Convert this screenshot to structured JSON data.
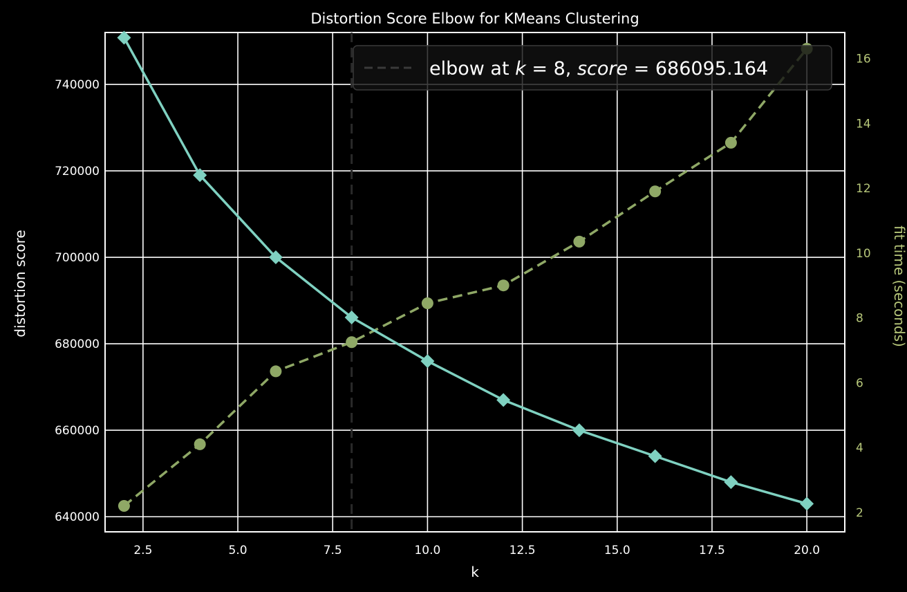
{
  "chart_data": {
    "type": "line",
    "title": "Distortion Score Elbow for KMeans Clustering",
    "xlabel": "k",
    "ylabel": "distortion score",
    "ylabel_right": "fit time (seconds)",
    "xlim": [
      1.5,
      21.0
    ],
    "ylim": [
      636500,
      752000
    ],
    "ylim_right": [
      1.4,
      16.8
    ],
    "x_ticks": [
      2.5,
      5.0,
      7.5,
      10.0,
      12.5,
      15.0,
      17.5,
      20.0
    ],
    "x_tick_labels": [
      "2.5",
      "5.0",
      "7.5",
      "10.0",
      "12.5",
      "15.0",
      "17.5",
      "20.0"
    ],
    "y_ticks": [
      640000,
      660000,
      680000,
      700000,
      720000,
      740000
    ],
    "y_tick_labels": [
      "640000",
      "660000",
      "680000",
      "700000",
      "720000",
      "740000"
    ],
    "y_right_ticks": [
      2,
      4,
      6,
      8,
      10,
      12,
      14,
      16
    ],
    "y_right_tick_labels": [
      "2",
      "4",
      "6",
      "8",
      "10",
      "12",
      "14",
      "16"
    ],
    "grid": true,
    "legend_position": "top-right",
    "series": [
      {
        "axis": "left",
        "style": "solid",
        "marker": "diamond",
        "color": "#7fd1c1",
        "x": [
          2,
          4,
          6,
          8,
          10,
          12,
          14,
          16,
          18,
          20
        ],
        "values": [
          750800,
          719000,
          700000,
          686095.164,
          676000,
          667000,
          660000,
          654000,
          648000,
          643000
        ]
      },
      {
        "axis": "right",
        "style": "dashed",
        "marker": "circle",
        "color": "#8fa866",
        "x": [
          2,
          4,
          6,
          8,
          10,
          12,
          14,
          16,
          18,
          20
        ],
        "values": [
          2.2,
          4.1,
          6.35,
          7.25,
          8.45,
          9.0,
          10.35,
          11.9,
          13.4,
          16.3
        ]
      }
    ],
    "elbow": {
      "k": 8,
      "score": 686095.164,
      "legend_prefix": "elbow at ",
      "legend_k": "k",
      "legend_eq1": " = 8, ",
      "legend_score": "score",
      "legend_eq2": " = 686095.164"
    },
    "colors": {
      "background": "#000000",
      "grid": "#ffffff",
      "text": "#ffffff",
      "right_axis_text": "#b7c77a",
      "elbow_line": "#2a2a2a",
      "legend_bg": "#111111",
      "legend_border": "#3a3a3a"
    }
  }
}
